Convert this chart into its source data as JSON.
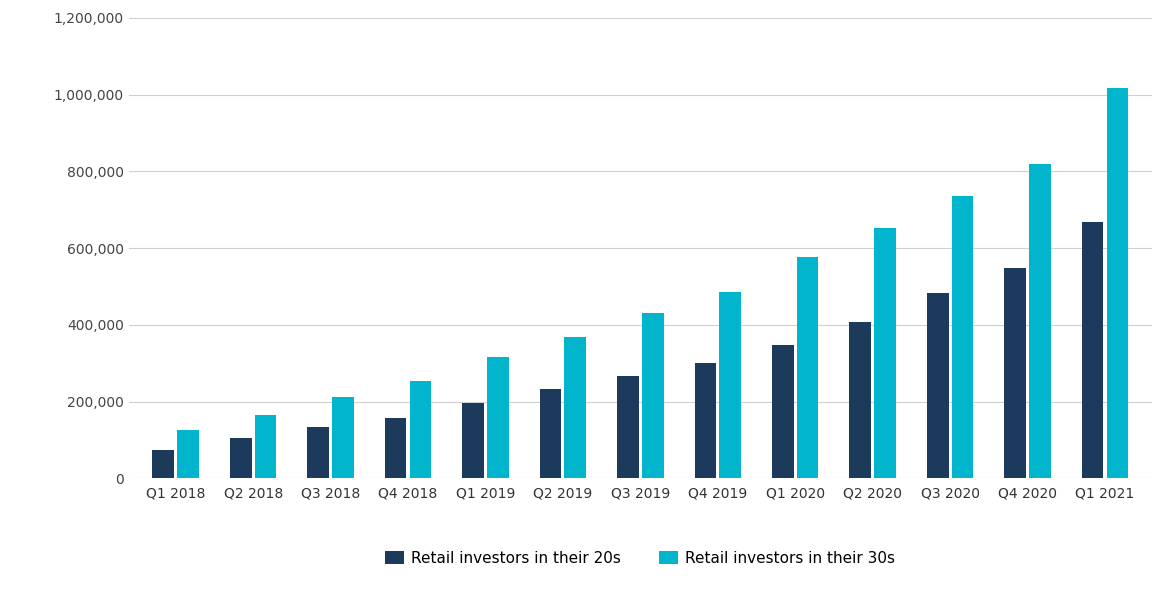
{
  "categories": [
    "Q1 2018",
    "Q2 2018",
    "Q3 2018",
    "Q4 2018",
    "Q1 2019",
    "Q2 2019",
    "Q3 2019",
    "Q4 2019",
    "Q1 2020",
    "Q2 2020",
    "Q3 2020",
    "Q4 2020",
    "Q1 2021"
  ],
  "twenties": [
    75000,
    105000,
    135000,
    158000,
    197000,
    232000,
    268000,
    300000,
    347000,
    408000,
    482000,
    548000,
    668000
  ],
  "thirties": [
    127000,
    165000,
    213000,
    255000,
    317000,
    368000,
    430000,
    485000,
    578000,
    653000,
    737000,
    820000,
    1018000
  ],
  "color_twenties": "#1b3a5c",
  "color_thirties": "#00b5cc",
  "legend_twenties": "Retail investors in their 20s",
  "legend_thirties": "Retail investors in their 30s",
  "ylim": [
    0,
    1200000
  ],
  "yticks": [
    0,
    200000,
    400000,
    600000,
    800000,
    1000000,
    1200000
  ],
  "background_color": "#ffffff",
  "grid_color": "#d0d0d0",
  "bar_width": 0.28,
  "bar_gap": 0.04
}
